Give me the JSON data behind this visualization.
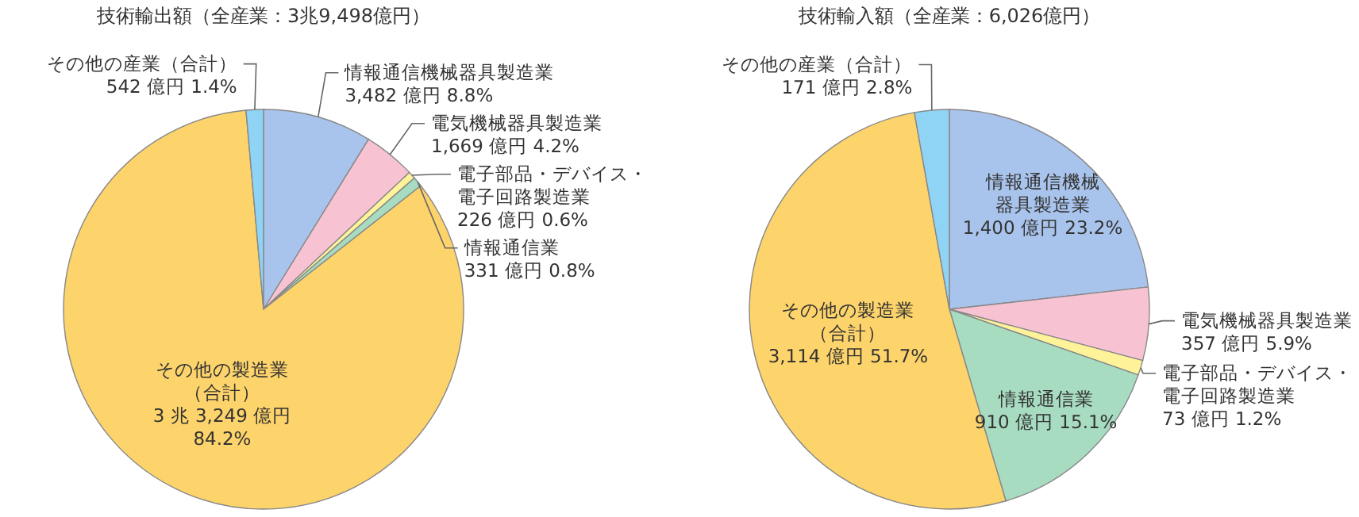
{
  "chart_data": [
    {
      "type": "pie",
      "title": "技術輸出額（全産業：3兆9,498億円）",
      "categories": [
        "情報通信機械器具製造業",
        "電気機械器具製造業",
        "電子部品・デバイス・電子回路製造業",
        "情報通信業",
        "その他の製造業（合計）",
        "その他の産業（合計）"
      ],
      "values": [
        8.8,
        4.2,
        0.6,
        0.8,
        84.2,
        1.4
      ],
      "value_labels": [
        "3,482 億円 8.8%",
        "1,669 億円 4.2%",
        "226 億円 0.6%",
        "331 億円 0.8%",
        "3 兆 3,249 億円 84.2%",
        "542 億円 1.4%"
      ],
      "colors": [
        "#a9c4ec",
        "#f7c3d3",
        "#fff39a",
        "#a8dcc0",
        "#fdd36b",
        "#8fd3f5"
      ]
    },
    {
      "type": "pie",
      "title": "技術輸入額（全産業：6,026億円）",
      "categories": [
        "情報通信機械器具製造業",
        "電気機械器具製造業",
        "電子部品・デバイス・電子回路製造業",
        "情報通信業",
        "その他の製造業（合計）",
        "その他の産業（合計）"
      ],
      "values": [
        23.2,
        5.9,
        1.2,
        15.1,
        51.7,
        2.8
      ],
      "value_labels": [
        "1,400 億円 23.2%",
        "357 億円 5.9%",
        "73 億円 1.2%",
        "910 億円 15.1%",
        "3,114 億円 51.7%",
        "171 億円 2.8%"
      ],
      "colors": [
        "#a9c4ec",
        "#f7c3d3",
        "#fff39a",
        "#a8dcc0",
        "#fdd36b",
        "#8fd3f5"
      ]
    }
  ]
}
